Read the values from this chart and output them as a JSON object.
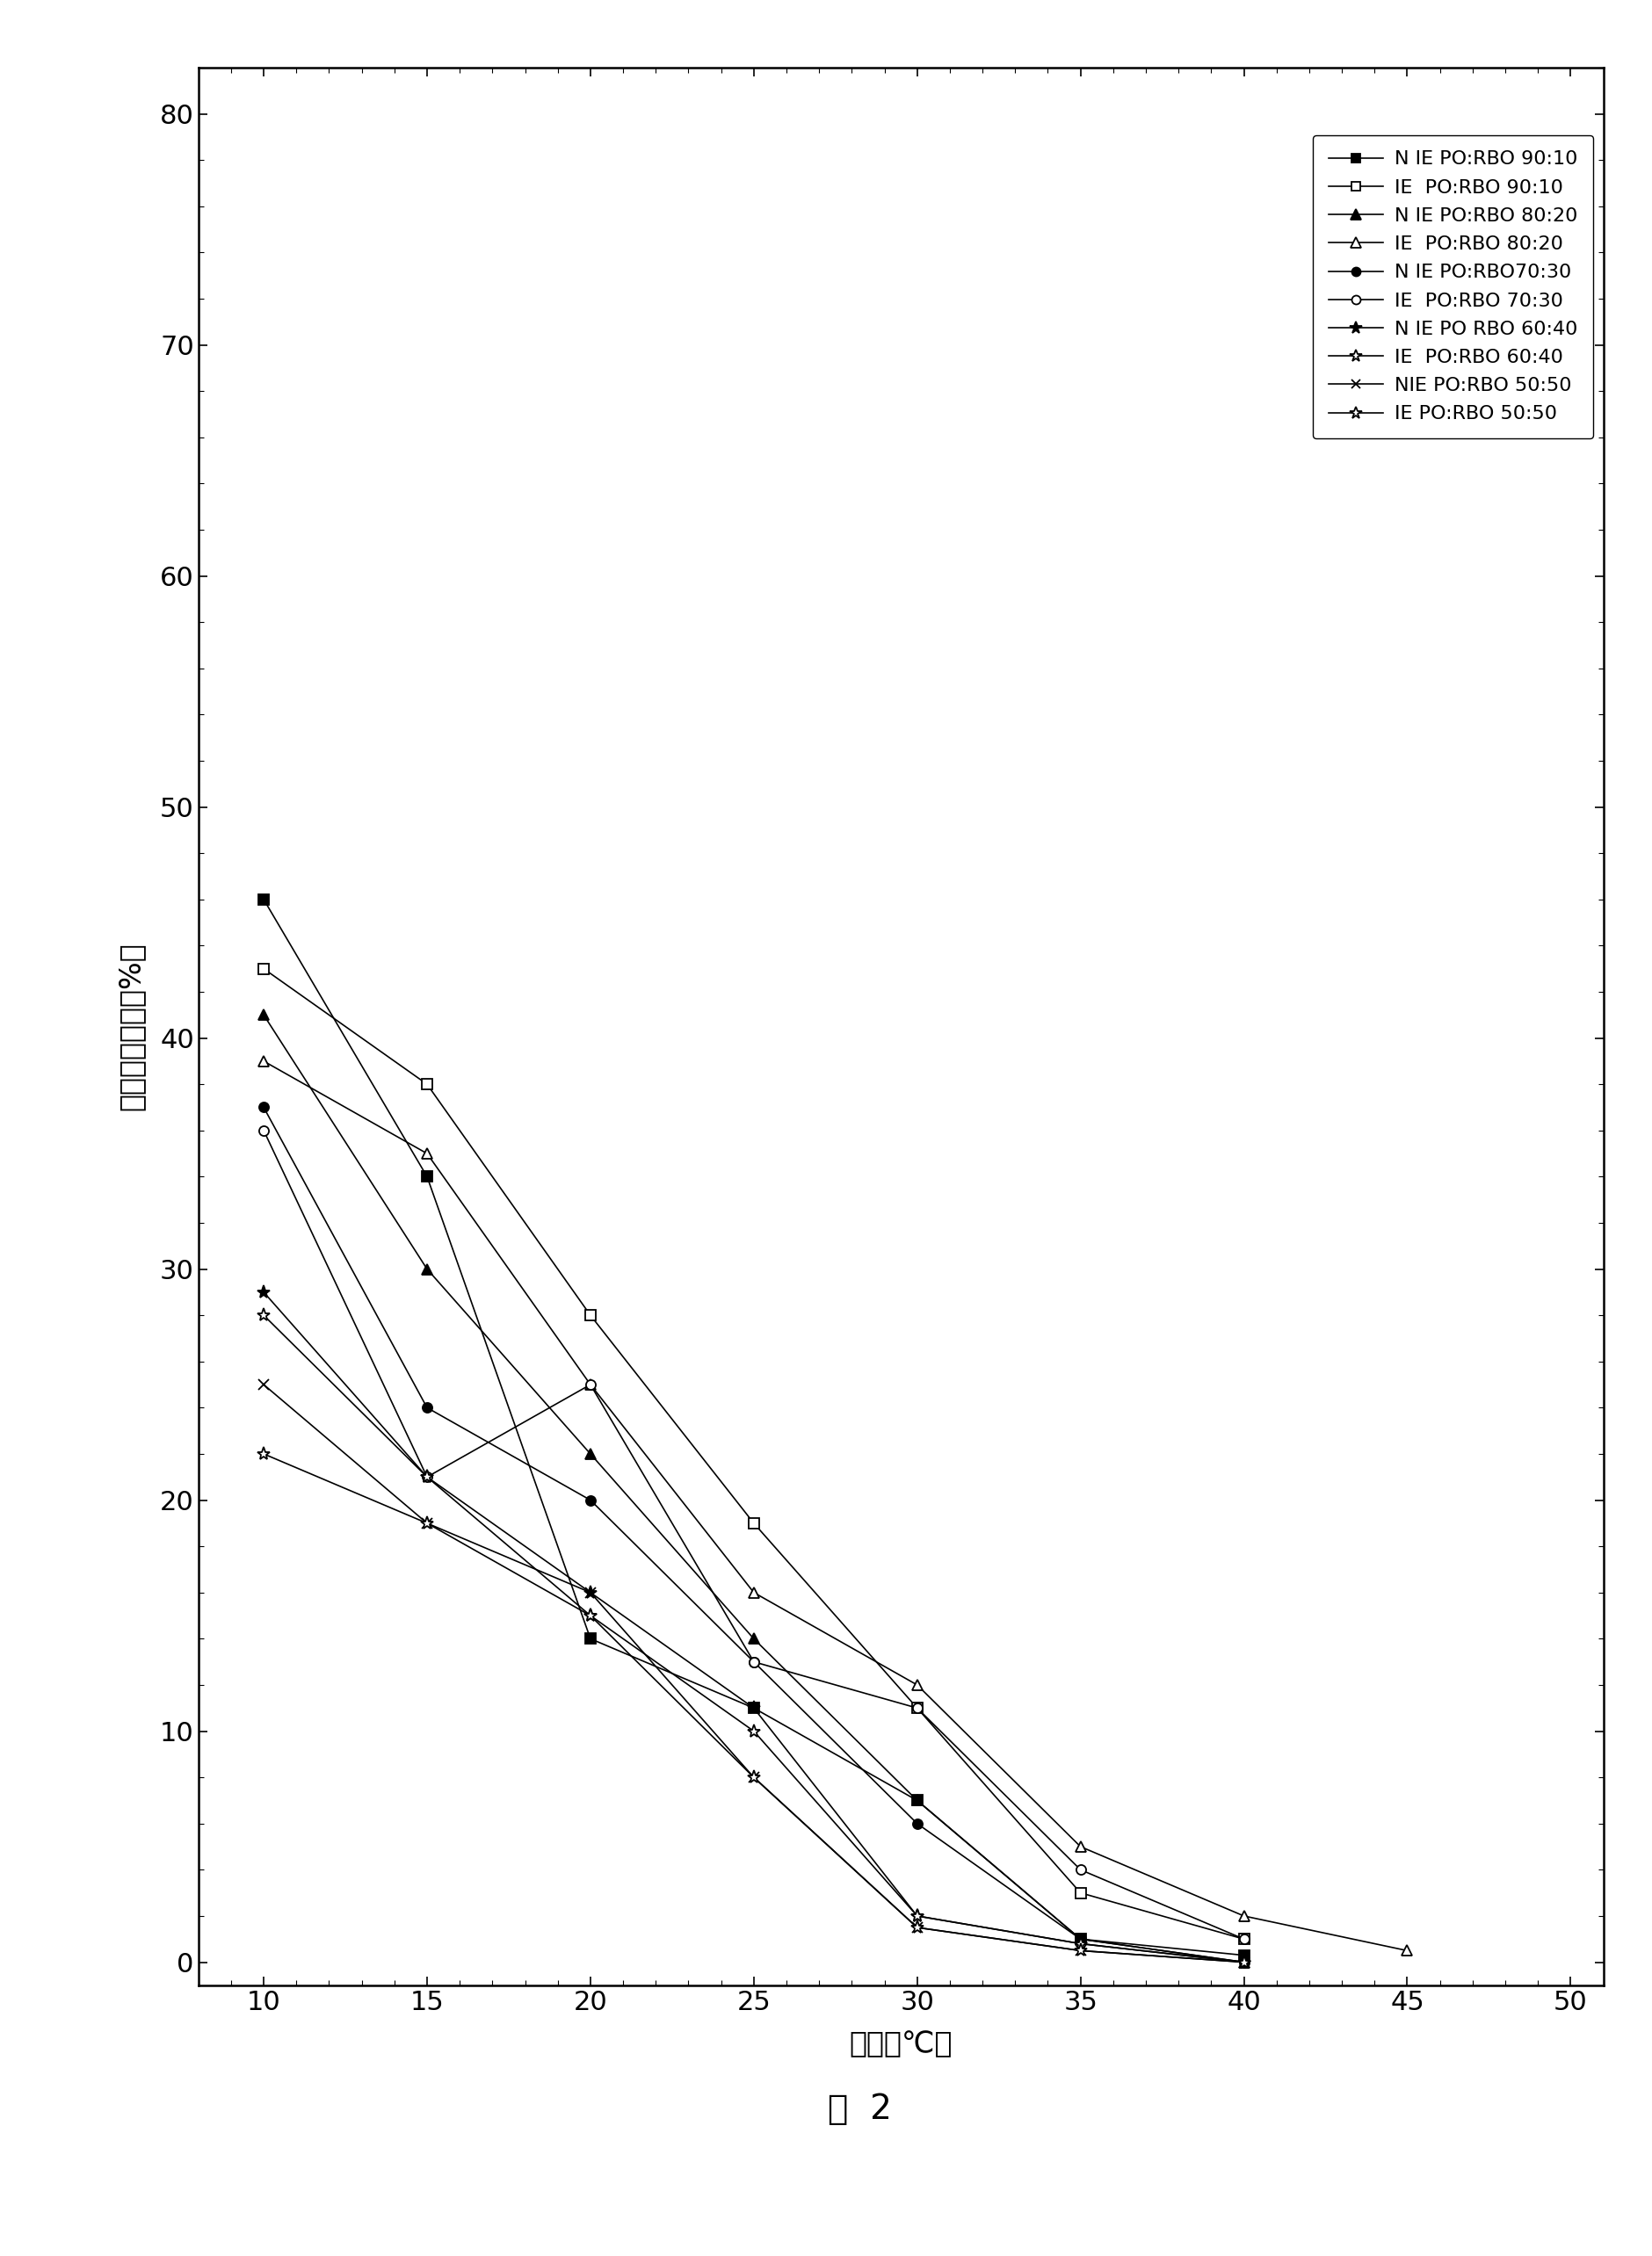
{
  "x": [
    10,
    15,
    20,
    25,
    30,
    35,
    40,
    45
  ],
  "series_configs": [
    {
      "label": "N IE PO:RBO 90:10",
      "values": [
        46,
        34,
        14,
        11,
        7,
        1.0,
        0.3,
        null
      ],
      "marker": "s",
      "mfc": "black",
      "mec": "black",
      "ms": 8
    },
    {
      "label": "IE  PO:RBO 90:10",
      "values": [
        43,
        38,
        28,
        19,
        11,
        3.0,
        1.0,
        null
      ],
      "marker": "s",
      "mfc": "white",
      "mec": "black",
      "ms": 8
    },
    {
      "label": "N IE PO:RBO 80:20",
      "values": [
        41,
        30,
        22,
        14,
        7,
        1.0,
        0.0,
        null
      ],
      "marker": "^",
      "mfc": "black",
      "mec": "black",
      "ms": 9
    },
    {
      "label": "IE  PO:RBO 80:20",
      "values": [
        39,
        35,
        25,
        16,
        12,
        5.0,
        2.0,
        0.5
      ],
      "marker": "^",
      "mfc": "white",
      "mec": "black",
      "ms": 9
    },
    {
      "label": "N IE PO:RBO70:30",
      "values": [
        37,
        24,
        20,
        13,
        6,
        1.0,
        0.0,
        null
      ],
      "marker": "o",
      "mfc": "black",
      "mec": "black",
      "ms": 8
    },
    {
      "label": "IE  PO:RBO 70:30",
      "values": [
        36,
        21,
        25,
        13,
        11,
        4.0,
        1.0,
        null
      ],
      "marker": "o",
      "mfc": "white",
      "mec": "black",
      "ms": 8
    },
    {
      "label": "N IE PO RBO 60:40",
      "values": [
        29,
        21,
        16,
        11,
        2,
        0.8,
        0.0,
        null
      ],
      "marker": "*",
      "mfc": "black",
      "mec": "black",
      "ms": 11
    },
    {
      "label": "IE  PO:RBO 60:40",
      "values": [
        28,
        21,
        15,
        10,
        2,
        0.8,
        0.0,
        null
      ],
      "marker": "*",
      "mfc": "white",
      "mec": "black",
      "ms": 11
    },
    {
      "label": "NIE PO:RBO 50:50",
      "values": [
        25,
        19,
        16,
        8,
        1.5,
        0.5,
        0.0,
        null
      ],
      "marker": "x",
      "mfc": "black",
      "mec": "black",
      "ms": 8
    },
    {
      "label": "IE PO:RBO 50:50",
      "values": [
        22,
        19,
        15,
        8,
        1.5,
        0.5,
        0.0,
        null
      ],
      "marker": "*",
      "mfc": "white",
      "mec": "black",
      "ms": 11
    }
  ],
  "xlabel": "温度（℃）",
  "ylabel": "固体脂肪含量（%）",
  "fig_title": "图  2",
  "xlim": [
    8,
    51
  ],
  "ylim": [
    -1,
    82
  ],
  "xticks": [
    10,
    15,
    20,
    25,
    30,
    35,
    40,
    45,
    50
  ],
  "yticks": [
    0,
    10,
    20,
    30,
    40,
    50,
    60,
    70,
    80
  ]
}
